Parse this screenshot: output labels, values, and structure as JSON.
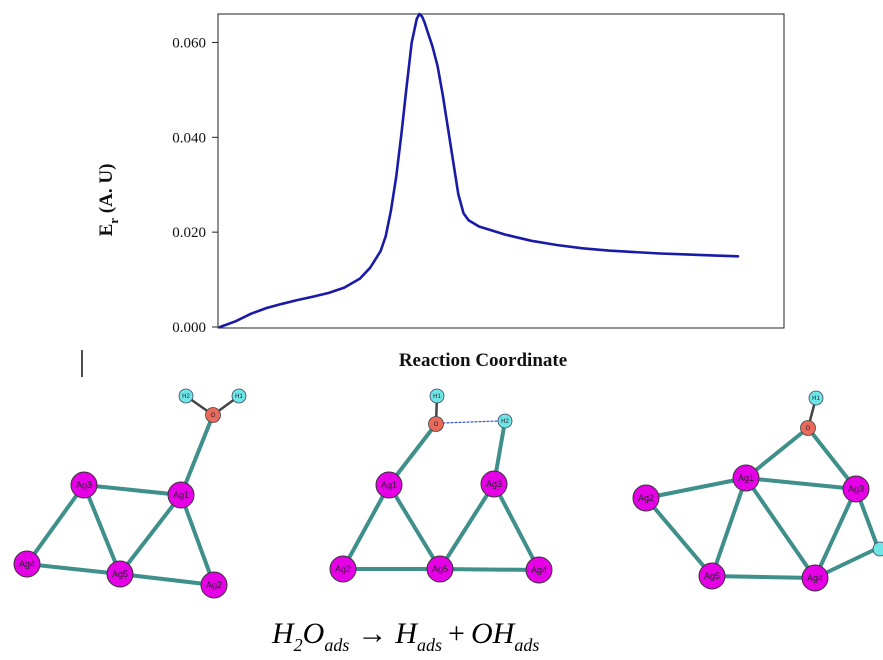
{
  "chart_data": {
    "type": "line",
    "title": "",
    "xlabel": "Reaction Coordinate",
    "ylabel_main": "E",
    "ylabel_sub": "r",
    "ylabel_rest": " (A. U)",
    "ylim": [
      0,
      0.066
    ],
    "yticks": [
      "0.000",
      "0.020",
      "0.040",
      "0.060"
    ],
    "ytick_values": [
      0,
      0.02,
      0.04,
      0.06
    ],
    "grid": false,
    "legend": "none",
    "line_color": "#1a1aa8",
    "series": [
      {
        "x": [
          0,
          0.03,
          0.06,
          0.09,
          0.12,
          0.15,
          0.18,
          0.21,
          0.24,
          0.27,
          0.29,
          0.31,
          0.32,
          0.33,
          0.34,
          0.35,
          0.36,
          0.37,
          0.38,
          0.385,
          0.39,
          0.395,
          0.4,
          0.41,
          0.42,
          0.43,
          0.44,
          0.45,
          0.46,
          0.47,
          0.48,
          0.5,
          0.55,
          0.6,
          0.65,
          0.7,
          0.75,
          0.8,
          0.85,
          0.9,
          0.95,
          1.0
        ],
        "y": [
          0.0,
          0.0012,
          0.0028,
          0.004,
          0.0049,
          0.0057,
          0.0064,
          0.0072,
          0.0083,
          0.0102,
          0.0125,
          0.016,
          0.0192,
          0.0245,
          0.0315,
          0.0405,
          0.0505,
          0.06,
          0.065,
          0.066,
          0.0655,
          0.0642,
          0.0625,
          0.0592,
          0.055,
          0.049,
          0.042,
          0.035,
          0.028,
          0.024,
          0.0225,
          0.0212,
          0.0195,
          0.0182,
          0.0173,
          0.0166,
          0.0161,
          0.0158,
          0.0155,
          0.0153,
          0.0151,
          0.0149
        ]
      }
    ]
  },
  "molecules": {
    "left": {
      "atoms": [
        {
          "label": "Ag3"
        },
        {
          "label": "Ag1"
        },
        {
          "label": "Ag4"
        },
        {
          "label": "Ag5"
        },
        {
          "label": "Ag2"
        },
        {
          "label": "O"
        },
        {
          "label": "H2"
        },
        {
          "label": "H1"
        }
      ]
    },
    "middle": {
      "atoms": [
        {
          "label": "Ag1"
        },
        {
          "label": "Ag3"
        },
        {
          "label": "Ag2"
        },
        {
          "label": "Ag5"
        },
        {
          "label": "Ag4"
        },
        {
          "label": "O"
        },
        {
          "label": "H1"
        },
        {
          "label": "H2"
        }
      ]
    },
    "right": {
      "atoms": [
        {
          "label": "Ag1"
        },
        {
          "label": "Ag3"
        },
        {
          "label": "Ag2"
        },
        {
          "label": "Ag5"
        },
        {
          "label": "Ag4"
        },
        {
          "label": "O"
        },
        {
          "label": "H1"
        }
      ]
    }
  },
  "colors": {
    "silver_atom": "#e600e6",
    "oxygen_atom": "#e86a5a",
    "hydrogen_atom": "#6fe6e6",
    "bond": "#3f8f8a",
    "hbond": "#3355cc"
  },
  "equation": {
    "h2o_H": "H",
    "h2o_sub2": "2",
    "h2o_O": "O",
    "sub_ads_1": "ads",
    "arrow": "→",
    "h_H": "H",
    "sub_ads_2": "ads",
    "plus": "+",
    "oh_OH": "OH",
    "sub_ads_3": "ads"
  }
}
